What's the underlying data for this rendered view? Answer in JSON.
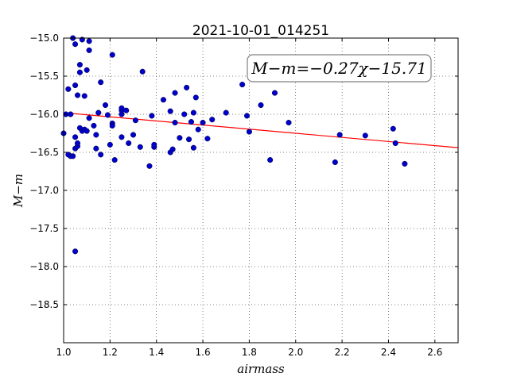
{
  "chart_data": {
    "type": "scatter",
    "title": "2021-10-01_014251",
    "xlabel": "airmass",
    "ylabel": "M−m",
    "annotation": "M−m=−0.27χ−15.71",
    "xlim": [
      1.0,
      2.7
    ],
    "ylim": [
      -15.0,
      -19.0
    ],
    "y_inverted": true,
    "grid": true,
    "x_ticks": [
      1.0,
      1.2,
      1.4,
      1.6,
      1.8,
      2.0,
      2.2,
      2.4,
      2.6
    ],
    "x_tick_labels": [
      "1.0",
      "1.2",
      "1.4",
      "1.6",
      "1.8",
      "2.0",
      "2.2",
      "2.4",
      "2.6"
    ],
    "y_ticks": [
      -15.0,
      -15.5,
      -16.0,
      -16.5,
      -17.0,
      -17.5,
      -18.0,
      -18.5
    ],
    "y_tick_labels": [
      "−15.0",
      "−15.5",
      "−16.0",
      "−16.5",
      "−17.0",
      "−17.5",
      "−18.0",
      "−18.5"
    ],
    "fit": {
      "slope": -0.27,
      "intercept": -15.71,
      "x_range": [
        1.0,
        2.7
      ],
      "color": "#ff0000"
    },
    "marker_color": "#0000cc",
    "points": [
      {
        "x": 1.0,
        "y": -16.25
      },
      {
        "x": 1.01,
        "y": -16.0
      },
      {
        "x": 1.02,
        "y": -16.53
      },
      {
        "x": 1.02,
        "y": -15.67
      },
      {
        "x": 1.03,
        "y": -16.55
      },
      {
        "x": 1.03,
        "y": -16.0
      },
      {
        "x": 1.04,
        "y": -16.55
      },
      {
        "x": 1.04,
        "y": -15.0
      },
      {
        "x": 1.05,
        "y": -16.45
      },
      {
        "x": 1.05,
        "y": -16.3
      },
      {
        "x": 1.05,
        "y": -15.62
      },
      {
        "x": 1.05,
        "y": -15.08
      },
      {
        "x": 1.05,
        "y": -17.8
      },
      {
        "x": 1.06,
        "y": -16.42
      },
      {
        "x": 1.06,
        "y": -16.38
      },
      {
        "x": 1.06,
        "y": -15.75
      },
      {
        "x": 1.07,
        "y": -16.18
      },
      {
        "x": 1.07,
        "y": -15.45
      },
      {
        "x": 1.07,
        "y": -15.35
      },
      {
        "x": 1.08,
        "y": -16.22
      },
      {
        "x": 1.08,
        "y": -15.02
      },
      {
        "x": 1.09,
        "y": -16.2
      },
      {
        "x": 1.09,
        "y": -15.76
      },
      {
        "x": 1.1,
        "y": -16.22
      },
      {
        "x": 1.1,
        "y": -15.42
      },
      {
        "x": 1.11,
        "y": -16.05
      },
      {
        "x": 1.11,
        "y": -15.16
      },
      {
        "x": 1.11,
        "y": -15.04
      },
      {
        "x": 1.13,
        "y": -16.15
      },
      {
        "x": 1.14,
        "y": -16.45
      },
      {
        "x": 1.14,
        "y": -16.27
      },
      {
        "x": 1.15,
        "y": -15.98
      },
      {
        "x": 1.16,
        "y": -16.53
      },
      {
        "x": 1.16,
        "y": -15.58
      },
      {
        "x": 1.18,
        "y": -15.88
      },
      {
        "x": 1.19,
        "y": -16.01
      },
      {
        "x": 1.2,
        "y": -16.4
      },
      {
        "x": 1.21,
        "y": -16.12
      },
      {
        "x": 1.21,
        "y": -16.15
      },
      {
        "x": 1.21,
        "y": -15.22
      },
      {
        "x": 1.22,
        "y": -16.6
      },
      {
        "x": 1.25,
        "y": -16.3
      },
      {
        "x": 1.25,
        "y": -16.0
      },
      {
        "x": 1.25,
        "y": -15.95
      },
      {
        "x": 1.25,
        "y": -15.92
      },
      {
        "x": 1.27,
        "y": -15.95
      },
      {
        "x": 1.28,
        "y": -16.38
      },
      {
        "x": 1.3,
        "y": -16.27
      },
      {
        "x": 1.31,
        "y": -16.08
      },
      {
        "x": 1.33,
        "y": -16.43
      },
      {
        "x": 1.34,
        "y": -15.44
      },
      {
        "x": 1.37,
        "y": -16.68
      },
      {
        "x": 1.38,
        "y": -16.02
      },
      {
        "x": 1.39,
        "y": -16.43
      },
      {
        "x": 1.39,
        "y": -16.4
      },
      {
        "x": 1.43,
        "y": -15.81
      },
      {
        "x": 1.46,
        "y": -16.5
      },
      {
        "x": 1.46,
        "y": -15.96
      },
      {
        "x": 1.47,
        "y": -16.46
      },
      {
        "x": 1.48,
        "y": -16.11
      },
      {
        "x": 1.48,
        "y": -15.72
      },
      {
        "x": 1.5,
        "y": -16.31
      },
      {
        "x": 1.52,
        "y": -16.0
      },
      {
        "x": 1.53,
        "y": -15.65
      },
      {
        "x": 1.54,
        "y": -16.33
      },
      {
        "x": 1.55,
        "y": -16.1
      },
      {
        "x": 1.56,
        "y": -16.44
      },
      {
        "x": 1.56,
        "y": -15.98
      },
      {
        "x": 1.57,
        "y": -15.78
      },
      {
        "x": 1.58,
        "y": -16.2
      },
      {
        "x": 1.6,
        "y": -16.11
      },
      {
        "x": 1.62,
        "y": -16.32
      },
      {
        "x": 1.64,
        "y": -16.07
      },
      {
        "x": 1.7,
        "y": -15.98
      },
      {
        "x": 1.77,
        "y": -15.61
      },
      {
        "x": 1.79,
        "y": -16.02
      },
      {
        "x": 1.8,
        "y": -16.23
      },
      {
        "x": 1.85,
        "y": -15.88
      },
      {
        "x": 1.89,
        "y": -16.6
      },
      {
        "x": 1.91,
        "y": -15.72
      },
      {
        "x": 1.97,
        "y": -16.11
      },
      {
        "x": 2.17,
        "y": -16.63
      },
      {
        "x": 2.19,
        "y": -16.27
      },
      {
        "x": 2.3,
        "y": -16.28
      },
      {
        "x": 2.42,
        "y": -16.19
      },
      {
        "x": 2.43,
        "y": -16.38
      },
      {
        "x": 2.47,
        "y": -16.65
      }
    ]
  }
}
